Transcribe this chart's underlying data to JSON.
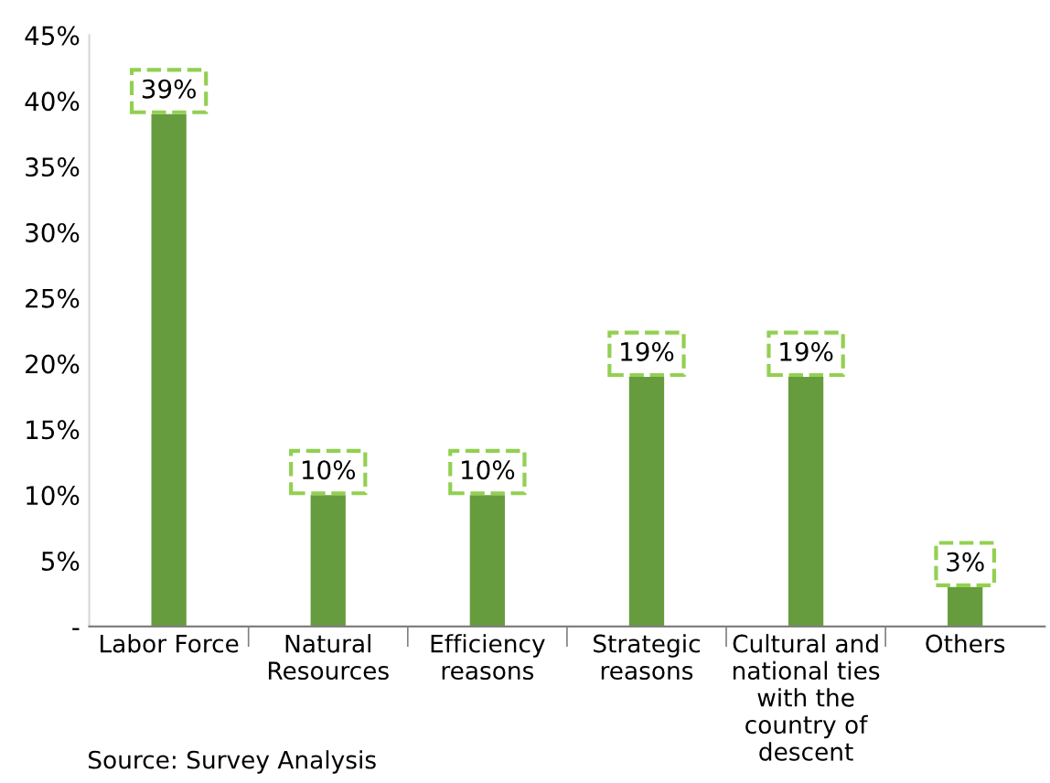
{
  "chart_data": {
    "type": "bar",
    "categories": [
      "Labor Force",
      "Natural\nResources",
      "Efficiency\nreasons",
      "Strategic\nreasons",
      "Cultural and\nnational ties\nwith the\ncountry of\ndescent",
      "Others"
    ],
    "values": [
      39,
      10,
      10,
      19,
      19,
      3
    ],
    "value_labels": [
      "39%",
      "10%",
      "10%",
      "19%",
      "19%",
      "3%"
    ],
    "color": "#669c3e",
    "ylim": [
      0,
      45
    ],
    "yticks": [
      {
        "value": 0,
        "label": "-"
      },
      {
        "value": 5,
        "label": "5%"
      },
      {
        "value": 10,
        "label": "10%"
      },
      {
        "value": 15,
        "label": "15%"
      },
      {
        "value": 20,
        "label": "20%"
      },
      {
        "value": 25,
        "label": "25%"
      },
      {
        "value": 30,
        "label": "30%"
      },
      {
        "value": 35,
        "label": "35%"
      },
      {
        "value": 40,
        "label": "40%"
      },
      {
        "value": 45,
        "label": "45%"
      }
    ],
    "grid": false,
    "legend": false,
    "annotations": [
      "Source: Survey Analysis"
    ]
  }
}
